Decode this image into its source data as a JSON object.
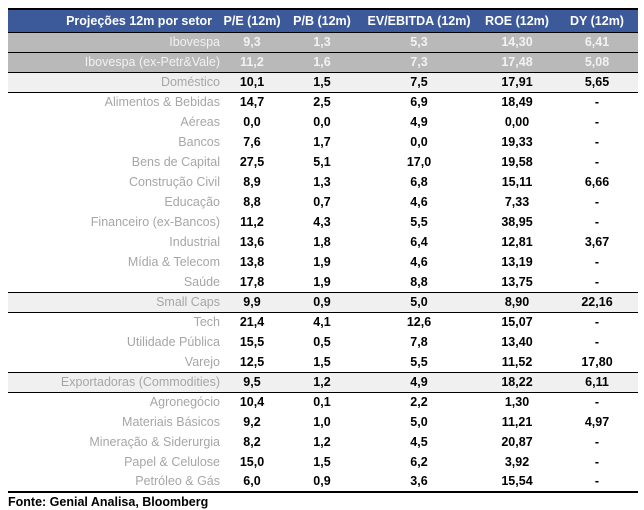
{
  "chart_data": {
    "type": "table",
    "title": "Projeções 12m por setor",
    "columns": [
      "P/E (12m)",
      "P/B (12m)",
      "EV/EBITDA (12m)",
      "ROE (12m)",
      "DY (12m)"
    ],
    "rows": [
      {
        "label": "Ibovespa",
        "style": "index",
        "values": [
          "9,3",
          "1,3",
          "5,3",
          "14,30",
          "6,41"
        ]
      },
      {
        "label": "Ibovespa (ex-Petr&Vale)",
        "style": "index",
        "values": [
          "11,2",
          "1,6",
          "7,3",
          "17,48",
          "5,08"
        ]
      },
      {
        "label": "Doméstico",
        "style": "group",
        "values": [
          "10,1",
          "1,5",
          "7,5",
          "17,91",
          "5,65"
        ]
      },
      {
        "label": "Alimentos & Bebidas",
        "style": "sector",
        "values": [
          "14,7",
          "2,5",
          "6,9",
          "18,49",
          "-"
        ]
      },
      {
        "label": "Aéreas",
        "style": "sector",
        "values": [
          "0,0",
          "0,0",
          "4,9",
          "0,00",
          "-"
        ]
      },
      {
        "label": "Bancos",
        "style": "sector",
        "values": [
          "7,6",
          "1,7",
          "0,0",
          "19,33",
          "-"
        ]
      },
      {
        "label": "Bens de Capital",
        "style": "sector",
        "values": [
          "27,5",
          "5,1",
          "17,0",
          "19,58",
          "-"
        ]
      },
      {
        "label": "Construção Civil",
        "style": "sector",
        "values": [
          "8,9",
          "1,3",
          "6,8",
          "15,11",
          "6,66"
        ]
      },
      {
        "label": "Educação",
        "style": "sector",
        "values": [
          "8,8",
          "0,7",
          "4,6",
          "7,33",
          "-"
        ]
      },
      {
        "label": "Financeiro (ex-Bancos)",
        "style": "sector",
        "values": [
          "11,2",
          "4,3",
          "5,5",
          "38,95",
          "-"
        ]
      },
      {
        "label": "Industrial",
        "style": "sector",
        "values": [
          "13,6",
          "1,8",
          "6,4",
          "12,81",
          "3,67"
        ]
      },
      {
        "label": "Mídia & Telecom",
        "style": "sector",
        "values": [
          "13,8",
          "1,9",
          "4,6",
          "13,19",
          "-"
        ]
      },
      {
        "label": "Saúde",
        "style": "sector",
        "values": [
          "17,8",
          "1,9",
          "8,8",
          "13,75",
          "-"
        ]
      },
      {
        "label": "Small Caps",
        "style": "group",
        "values": [
          "9,9",
          "0,9",
          "5,0",
          "8,90",
          "22,16"
        ]
      },
      {
        "label": "Tech",
        "style": "sector",
        "values": [
          "21,4",
          "4,1",
          "12,6",
          "15,07",
          "-"
        ]
      },
      {
        "label": "Utilidade Pública",
        "style": "sector",
        "values": [
          "15,5",
          "0,5",
          "7,8",
          "13,40",
          "-"
        ]
      },
      {
        "label": "Varejo",
        "style": "sector",
        "values": [
          "12,5",
          "1,5",
          "5,5",
          "11,52",
          "17,80"
        ]
      },
      {
        "label": "Exportadoras (Commodities)",
        "style": "group",
        "values": [
          "9,5",
          "1,2",
          "4,9",
          "18,22",
          "6,11"
        ]
      },
      {
        "label": "Agronegócio",
        "style": "sector",
        "values": [
          "10,4",
          "0,1",
          "2,2",
          "1,30",
          "-"
        ]
      },
      {
        "label": "Materiais Básicos",
        "style": "sector",
        "values": [
          "9,2",
          "1,0",
          "5,0",
          "11,21",
          "4,97"
        ]
      },
      {
        "label": "Mineração & Siderurgia",
        "style": "sector",
        "values": [
          "8,2",
          "1,2",
          "4,5",
          "20,87",
          "-"
        ]
      },
      {
        "label": "Papel & Celulose",
        "style": "sector",
        "values": [
          "15,0",
          "1,5",
          "6,2",
          "3,92",
          "-"
        ]
      },
      {
        "label": "Petróleo & Gás",
        "style": "sector",
        "values": [
          "6,0",
          "0,9",
          "3,6",
          "15,54",
          "-"
        ]
      }
    ],
    "source": "Fonte: Genial Analisa, Bloomberg",
    "legend_position": "none",
    "grid": false
  },
  "colors": {
    "header_bg": "#3c5a9a",
    "header_text": "#ffffff",
    "index_row_bg": "#b9b9b9",
    "index_row_text": "#f2f2f2",
    "group_row_bg": "#f0f0f0",
    "sector_label_text": "#a6a6a6",
    "value_text": "#000000",
    "border": "#000000"
  }
}
